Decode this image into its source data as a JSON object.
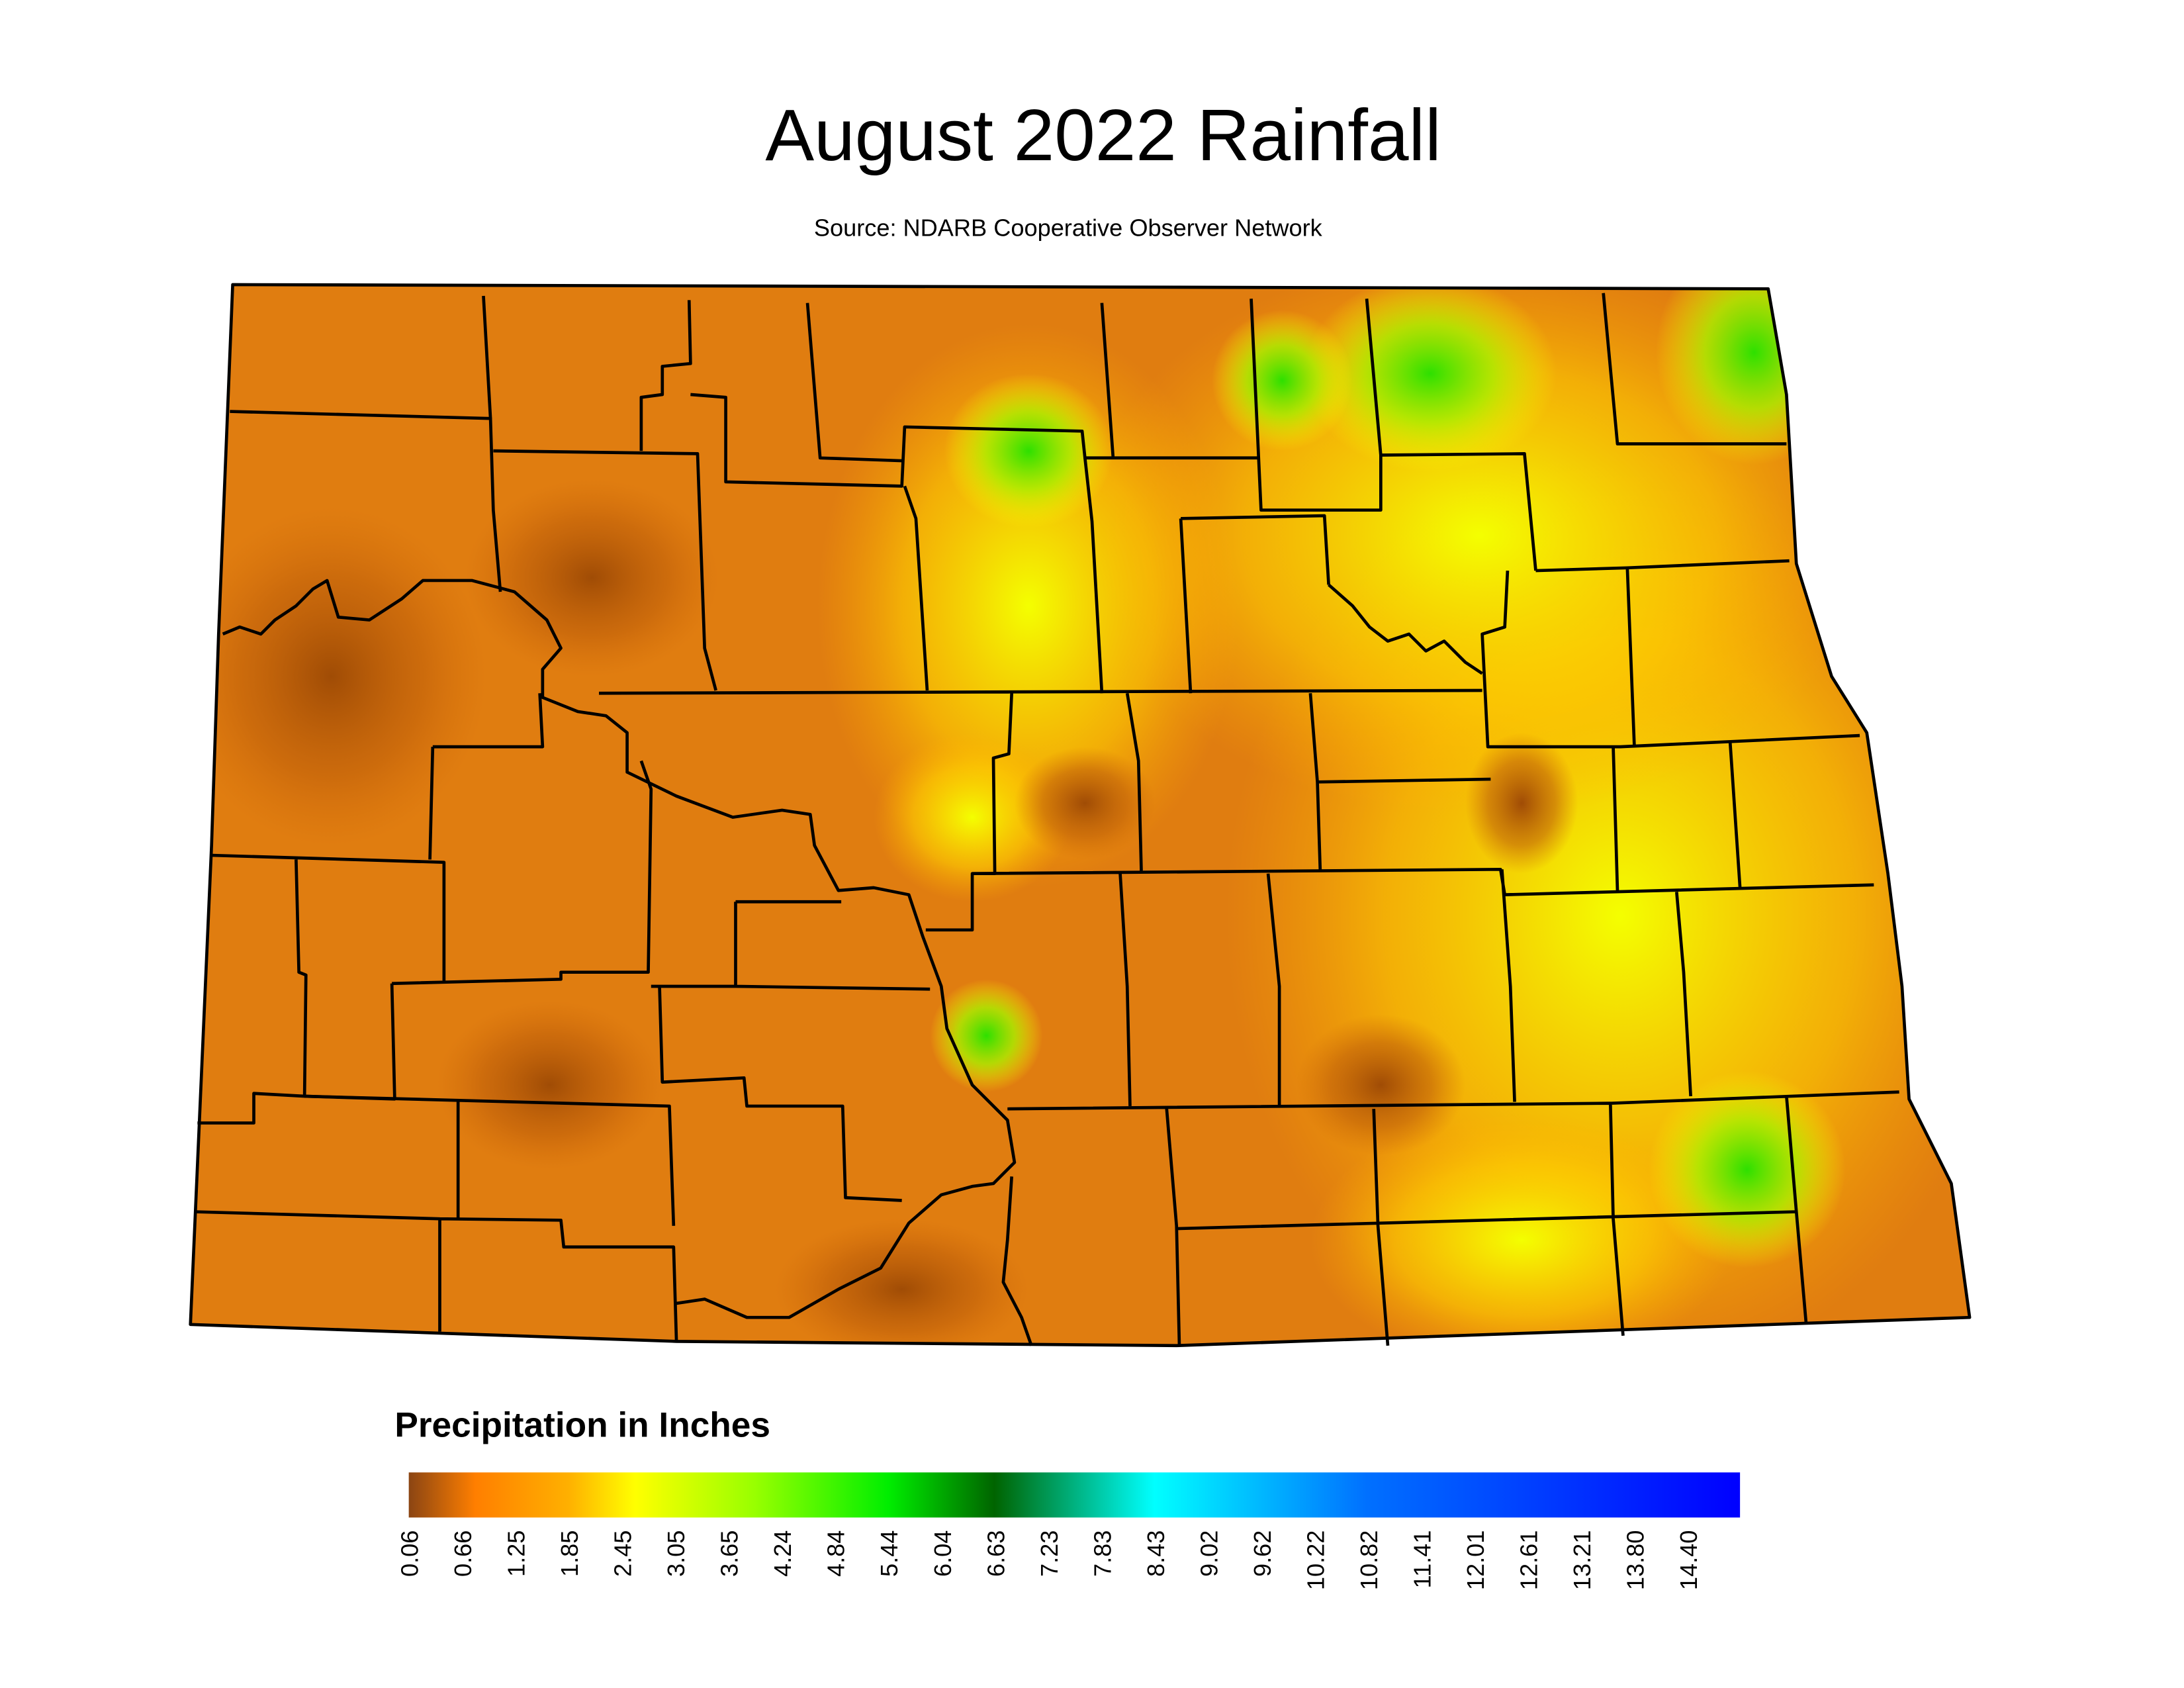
{
  "header": {
    "title": "August 2022 Rainfall",
    "subtitle": "Source: NDARB Cooperative Observer Network"
  },
  "legend": {
    "title": "Precipitation in Inches",
    "ticks": [
      "0.06",
      "0.66",
      "1.25",
      "1.85",
      "2.45",
      "3.05",
      "3.65",
      "4.24",
      "4.84",
      "5.44",
      "6.04",
      "6.63",
      "7.23",
      "7.83",
      "8.43",
      "9.02",
      "9.62",
      "10.22",
      "10.82",
      "11.41",
      "12.01",
      "12.61",
      "13.21",
      "13.80",
      "14.40"
    ]
  }
}
